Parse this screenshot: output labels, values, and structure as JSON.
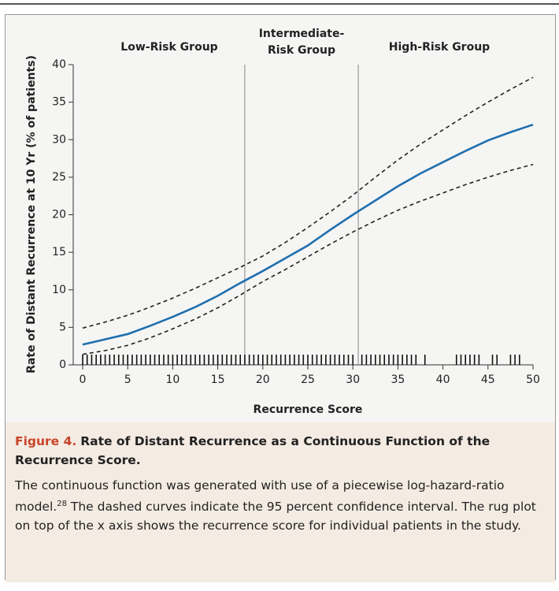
{
  "chart_data": {
    "type": "line",
    "y_label": "Rate of Distant Recurrence at 10 Yr (% of patients)",
    "x_label": "Recurrence Score",
    "annotations": [
      "Low-Risk Group",
      "Intermediate-",
      "Risk Group",
      "High-Risk Group"
    ],
    "group_boundaries": [
      18,
      30.6
    ],
    "x": [
      0,
      2.5,
      5,
      7.5,
      10,
      12.5,
      15,
      17.5,
      20,
      22.5,
      25,
      27.5,
      30,
      32.5,
      35,
      37.5,
      40,
      42.5,
      45,
      47.5,
      50
    ],
    "series": [
      {
        "name": "Rate",
        "color": "#1f6fae",
        "dashed": false,
        "values": [
          2.7,
          3.4,
          4.1,
          5.2,
          6.4,
          7.7,
          9.2,
          10.9,
          12.5,
          14.2,
          15.9,
          18.0,
          20.0,
          21.9,
          23.8,
          25.5,
          27.0,
          28.5,
          29.9,
          31.0,
          32.0
        ]
      },
      {
        "name": "Upper 95% CI",
        "color": "#222222",
        "dashed": true,
        "values": [
          4.9,
          5.7,
          6.6,
          7.7,
          8.9,
          10.2,
          11.6,
          13.0,
          14.5,
          16.3,
          18.3,
          20.4,
          22.6,
          25.0,
          27.3,
          29.4,
          31.3,
          33.2,
          35.0,
          36.7,
          38.3
        ]
      },
      {
        "name": "Lower 95% CI",
        "color": "#222222",
        "dashed": true,
        "values": [
          1.4,
          1.9,
          2.6,
          3.6,
          4.8,
          6.1,
          7.6,
          9.3,
          11.1,
          12.7,
          14.4,
          16.1,
          17.7,
          19.2,
          20.6,
          21.8,
          22.9,
          24.0,
          25.0,
          25.9,
          26.7
        ]
      }
    ],
    "rug_x": [
      0,
      0.5,
      1,
      1.5,
      2,
      2.5,
      3,
      3.5,
      4,
      4.5,
      5,
      5.5,
      6,
      6.5,
      7,
      7.5,
      8,
      8.5,
      9,
      9.5,
      10,
      10.5,
      11,
      11.5,
      12,
      12.5,
      13,
      13.5,
      14,
      14.5,
      15,
      15.5,
      16,
      16.5,
      17,
      17.5,
      18,
      18.5,
      19,
      19.5,
      20,
      20.5,
      21,
      21.5,
      22,
      22.5,
      23,
      23.5,
      24,
      24.5,
      25,
      25.5,
      26,
      26.5,
      27,
      27.5,
      28,
      28.5,
      29,
      29.5,
      30,
      31,
      31.5,
      32,
      32.5,
      33,
      33.5,
      34,
      34.5,
      35,
      35.5,
      36,
      36.5,
      37,
      38,
      41.5,
      42,
      42.5,
      43,
      43.5,
      44,
      45.5,
      46,
      47.5,
      48,
      48.5
    ],
    "xlim": [
      0,
      50
    ],
    "xticks": [
      0,
      5,
      10,
      15,
      20,
      25,
      30,
      35,
      40,
      45,
      50
    ],
    "ylim": [
      0,
      40
    ],
    "yticks": [
      0,
      5,
      10,
      15,
      20,
      25,
      30,
      35,
      40
    ]
  },
  "caption": {
    "label": "Figure 4.",
    "title": "Rate of Distant Recurrence as a Continuous Function of the Recurrence Score.",
    "body_1": "The continuous function was generated with use of a piecewise log-hazard-ratio model.",
    "ref": "28",
    "body_2": " The dashed curves indicate the 95 percent confidence interval. The rug plot on top of the x axis shows the recurrence score for individual patients in the study."
  }
}
